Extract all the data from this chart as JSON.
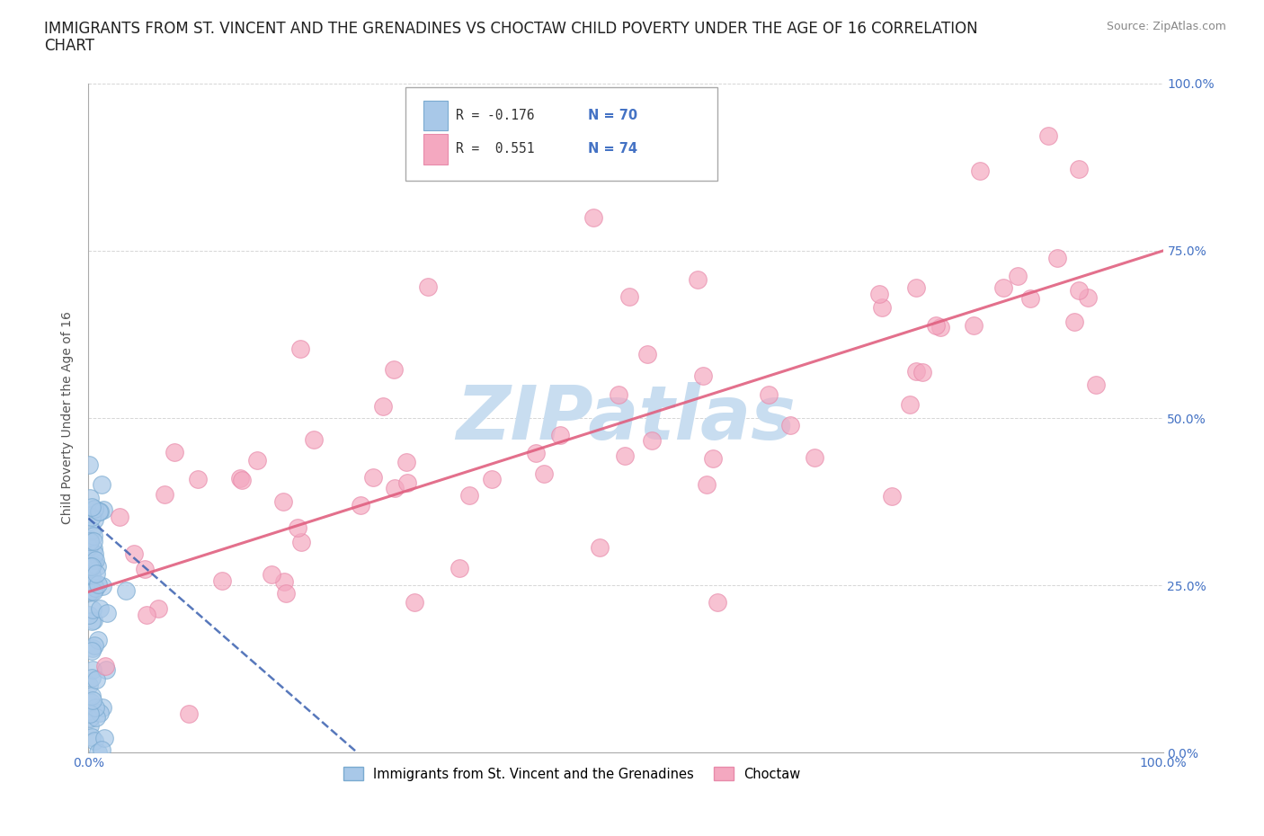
{
  "title_line1": "IMMIGRANTS FROM ST. VINCENT AND THE GRENADINES VS CHOCTAW CHILD POVERTY UNDER THE AGE OF 16 CORRELATION",
  "title_line2": "CHART",
  "source_text": "Source: ZipAtlas.com",
  "ylabel": "Child Poverty Under the Age of 16",
  "xlim": [
    0.0,
    1.0
  ],
  "ylim": [
    0.0,
    1.0
  ],
  "xticks": [
    0.0,
    0.25,
    0.5,
    0.75,
    1.0
  ],
  "yticks": [
    0.0,
    0.25,
    0.5,
    0.75,
    1.0
  ],
  "xticklabels": [
    "0.0%",
    "",
    "",
    "",
    "100.0%"
  ],
  "yticklabels_right": [
    "0.0%",
    "25.0%",
    "50.0%",
    "75.0%",
    "100.0%"
  ],
  "blue_R": -0.176,
  "blue_N": 70,
  "pink_R": 0.551,
  "pink_N": 74,
  "blue_color": "#a8c8e8",
  "pink_color": "#f4a8c0",
  "blue_edge_color": "#7aaad0",
  "pink_edge_color": "#e88aaa",
  "blue_line_color": "#3a60b0",
  "pink_line_color": "#e06080",
  "watermark": "ZIPatlas",
  "watermark_color": "#c8ddf0",
  "legend_label_blue": "Immigrants from St. Vincent and the Grenadines",
  "legend_label_pink": "Choctaw",
  "background_color": "#ffffff",
  "title_fontsize": 12,
  "axis_label_fontsize": 10,
  "tick_fontsize": 10,
  "dot_size": 200,
  "pink_line_start_y": 0.24,
  "pink_line_end_y": 0.75,
  "blue_line_start_y": 0.35,
  "blue_line_end_y": 0.0
}
